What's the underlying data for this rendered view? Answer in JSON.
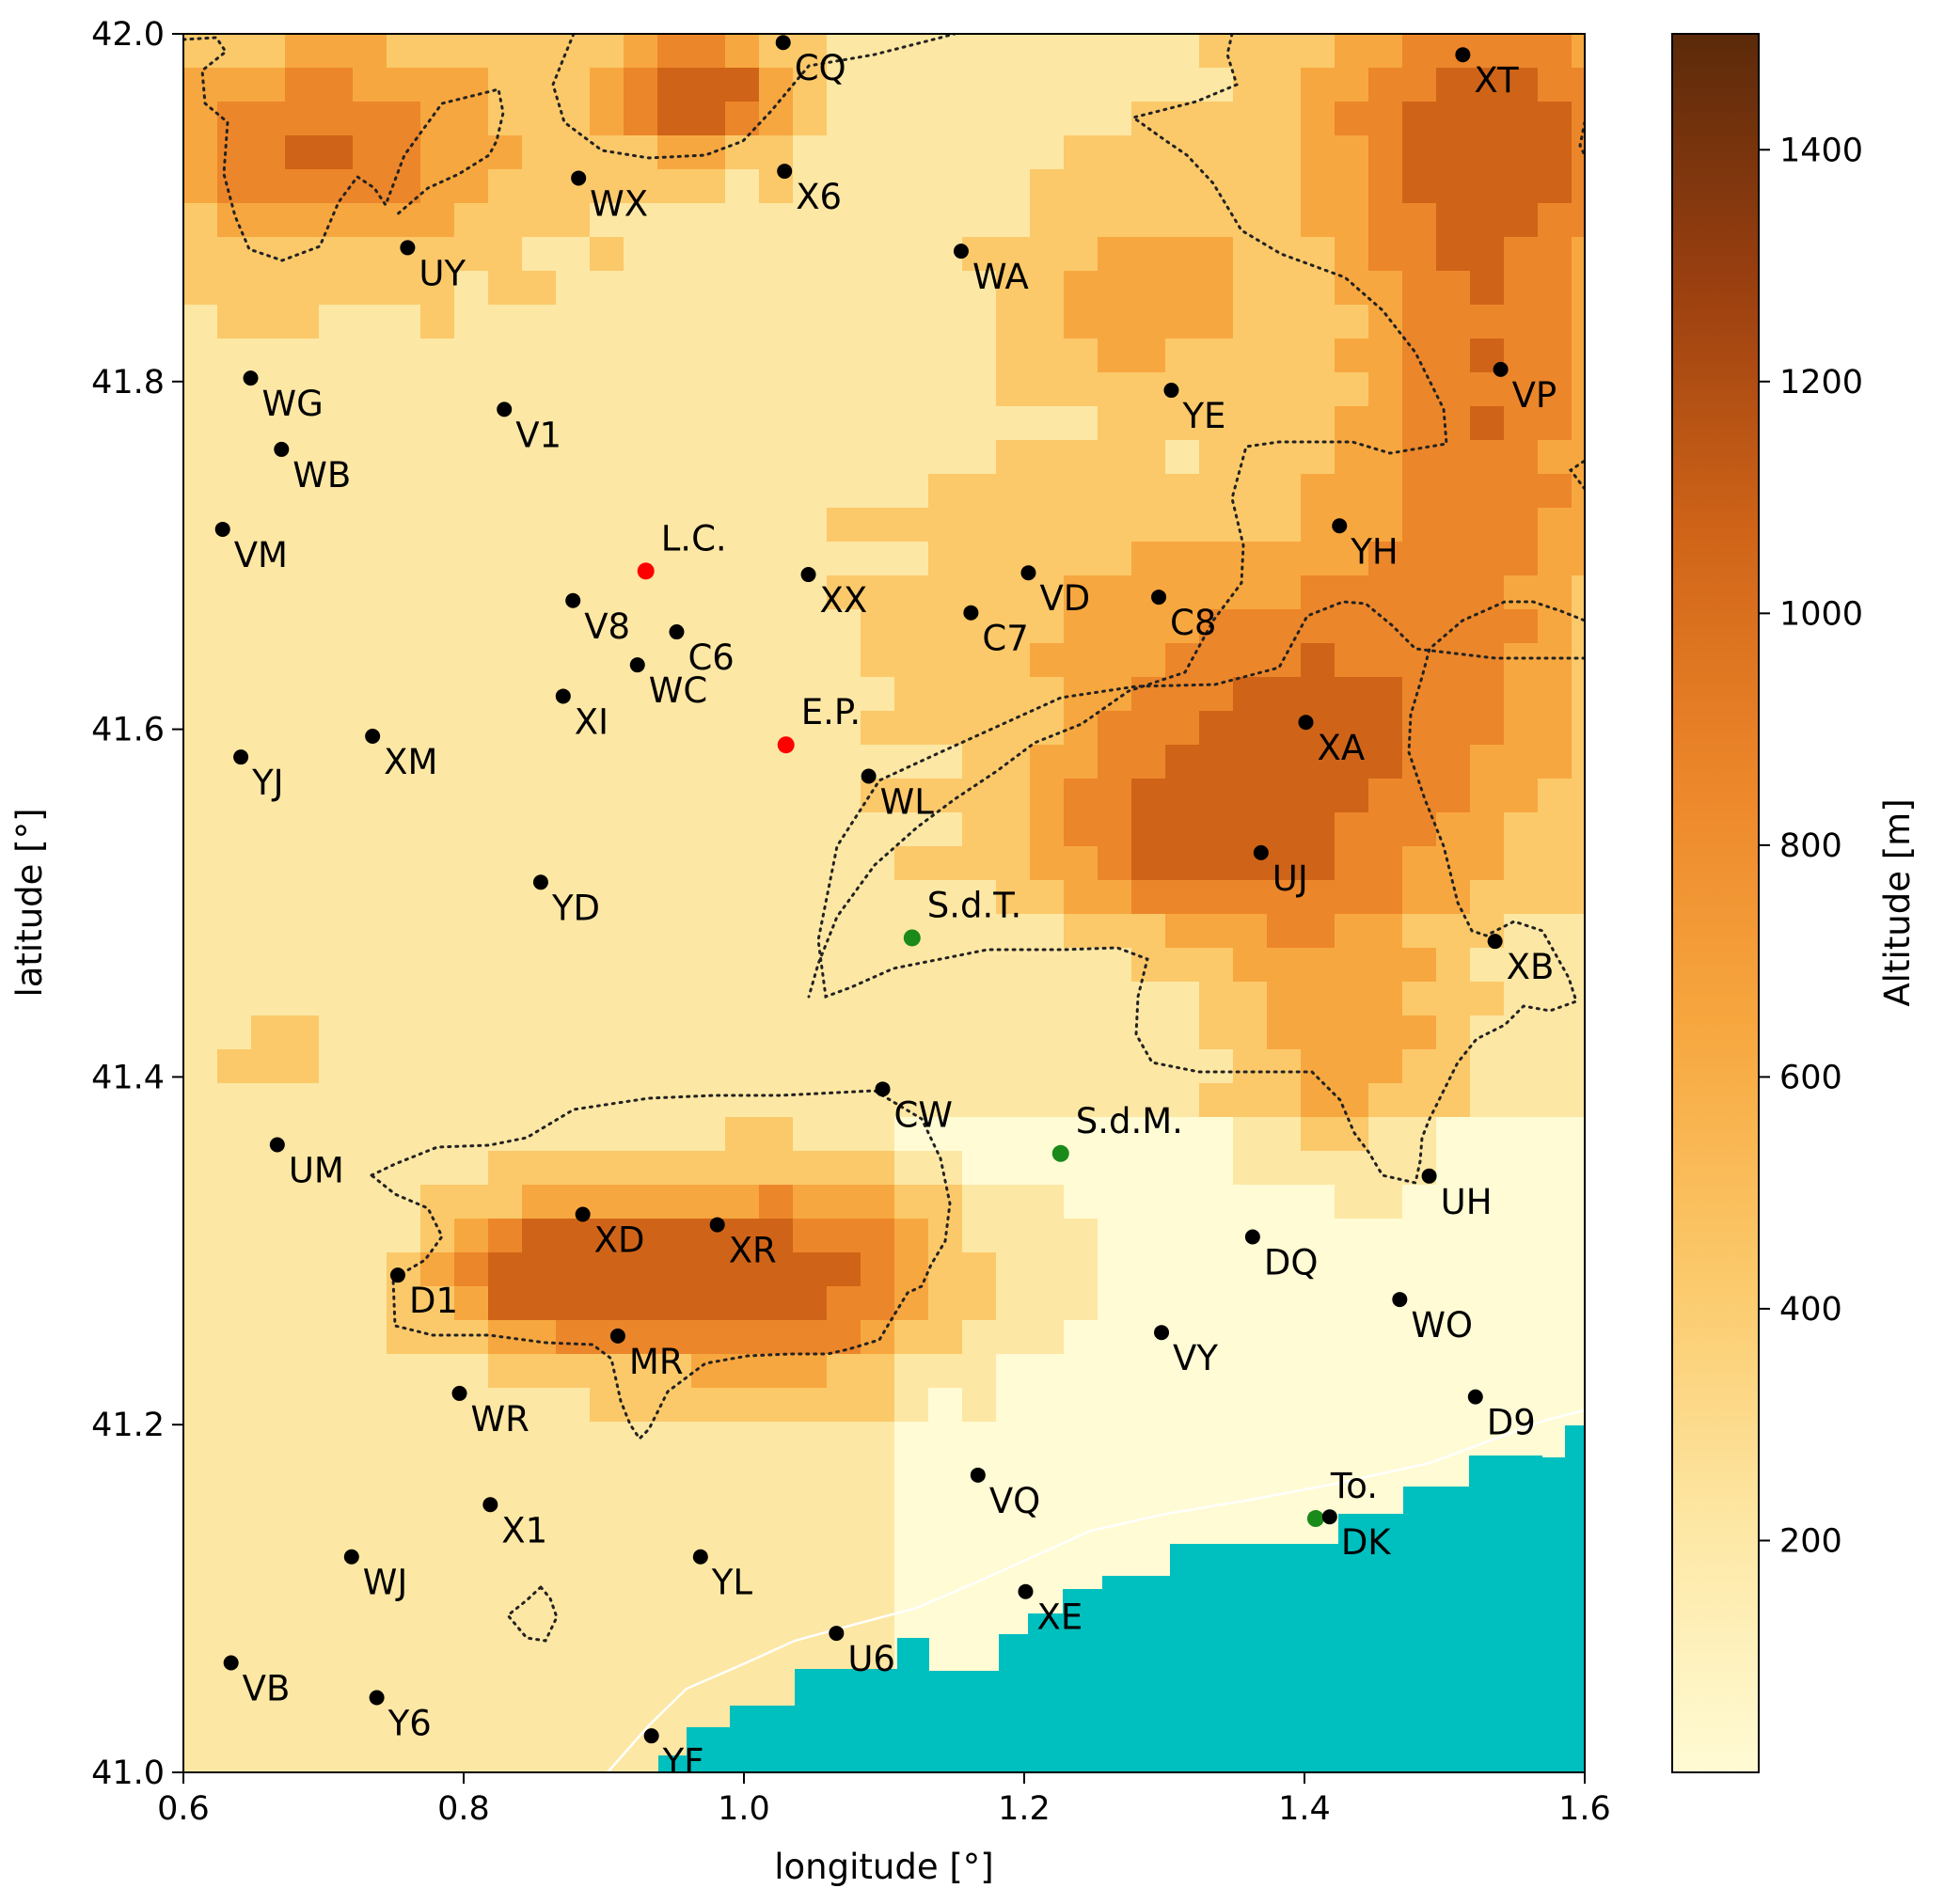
{
  "map": {
    "xlabel": "longitude [°]",
    "ylabel": "latitude [°]",
    "xlim": [
      0.6,
      1.6
    ],
    "ylim": [
      41.0,
      42.0
    ],
    "xticks": [
      {
        "v": 0.6,
        "t": "0.6"
      },
      {
        "v": 0.8,
        "t": "0.8"
      },
      {
        "v": 1.0,
        "t": "1.0"
      },
      {
        "v": 1.2,
        "t": "1.2"
      },
      {
        "v": 1.4,
        "t": "1.4"
      },
      {
        "v": 1.6,
        "t": "1.6"
      }
    ],
    "yticks": [
      {
        "v": 41.0,
        "t": "41.0"
      },
      {
        "v": 41.2,
        "t": "41.2"
      },
      {
        "v": 41.4,
        "t": "41.4"
      },
      {
        "v": 41.6,
        "t": "41.6"
      },
      {
        "v": 41.8,
        "t": "41.8"
      },
      {
        "v": 42.0,
        "t": "42.0"
      }
    ],
    "colors": {
      "black_station": "#000000",
      "red_station": "#ff0000",
      "green_station": "#1a8a1a",
      "sea": "#00bfbf",
      "contour": "#222222"
    }
  },
  "colorbar": {
    "label": "Altitude [m]",
    "range": [
      0,
      1500
    ],
    "colors": [
      "#fffbd4",
      "#fde7a4",
      "#fbc96a",
      "#f7a73f",
      "#ec862a",
      "#cf6418",
      "#9a3f10",
      "#5b2a0a"
    ],
    "ticks": [
      {
        "v": 200,
        "t": "200"
      },
      {
        "v": 400,
        "t": "400"
      },
      {
        "v": 600,
        "t": "600"
      },
      {
        "v": 800,
        "t": "800"
      },
      {
        "v": 1000,
        "t": "1000"
      },
      {
        "v": 1200,
        "t": "1200"
      },
      {
        "v": 1400,
        "t": "1400"
      }
    ]
  },
  "stations": [
    {
      "name": "CQ",
      "lon": 1.028,
      "lat": 41.995,
      "color": "black"
    },
    {
      "name": "XT",
      "lon": 1.513,
      "lat": 41.988,
      "color": "black"
    },
    {
      "name": "WX",
      "lon": 0.882,
      "lat": 41.917,
      "color": "black"
    },
    {
      "name": "X6",
      "lon": 1.029,
      "lat": 41.921,
      "color": "black"
    },
    {
      "name": "UY",
      "lon": 0.76,
      "lat": 41.877,
      "color": "black"
    },
    {
      "name": "WA",
      "lon": 1.155,
      "lat": 41.875,
      "color": "black"
    },
    {
      "name": "WG",
      "lon": 0.648,
      "lat": 41.802,
      "color": "black"
    },
    {
      "name": "VP",
      "lon": 1.54,
      "lat": 41.807,
      "color": "black"
    },
    {
      "name": "V1",
      "lon": 0.829,
      "lat": 41.784,
      "color": "black"
    },
    {
      "name": "YE",
      "lon": 1.305,
      "lat": 41.795,
      "color": "black"
    },
    {
      "name": "WB",
      "lon": 0.67,
      "lat": 41.761,
      "color": "black"
    },
    {
      "name": "VM",
      "lon": 0.628,
      "lat": 41.715,
      "color": "black"
    },
    {
      "name": "YH",
      "lon": 1.425,
      "lat": 41.717,
      "color": "black"
    },
    {
      "name": "L.C.",
      "lon": 0.93,
      "lat": 41.691,
      "color": "red"
    },
    {
      "name": "XX",
      "lon": 1.046,
      "lat": 41.689,
      "color": "black"
    },
    {
      "name": "VD",
      "lon": 1.203,
      "lat": 41.69,
      "color": "black"
    },
    {
      "name": "C8",
      "lon": 1.296,
      "lat": 41.676,
      "color": "black"
    },
    {
      "name": "V8",
      "lon": 0.878,
      "lat": 41.674,
      "color": "black"
    },
    {
      "name": "C7",
      "lon": 1.162,
      "lat": 41.667,
      "color": "black"
    },
    {
      "name": "C6",
      "lon": 0.952,
      "lat": 41.656,
      "color": "black"
    },
    {
      "name": "WC",
      "lon": 0.924,
      "lat": 41.637,
      "color": "black"
    },
    {
      "name": "XI",
      "lon": 0.871,
      "lat": 41.619,
      "color": "black"
    },
    {
      "name": "XA",
      "lon": 1.401,
      "lat": 41.604,
      "color": "black"
    },
    {
      "name": "XM",
      "lon": 0.735,
      "lat": 41.596,
      "color": "black"
    },
    {
      "name": "E.P.",
      "lon": 1.03,
      "lat": 41.591,
      "color": "red"
    },
    {
      "name": "YJ",
      "lon": 0.641,
      "lat": 41.584,
      "color": "black"
    },
    {
      "name": "WL",
      "lon": 1.089,
      "lat": 41.573,
      "color": "black"
    },
    {
      "name": "UJ",
      "lon": 1.369,
      "lat": 41.529,
      "color": "black"
    },
    {
      "name": "YD",
      "lon": 0.855,
      "lat": 41.512,
      "color": "black"
    },
    {
      "name": "S.d.T.",
      "lon": 1.12,
      "lat": 41.48,
      "color": "green"
    },
    {
      "name": "XB",
      "lon": 1.536,
      "lat": 41.478,
      "color": "black"
    },
    {
      "name": "CW",
      "lon": 1.099,
      "lat": 41.393,
      "color": "black"
    },
    {
      "name": "UM",
      "lon": 0.667,
      "lat": 41.361,
      "color": "black"
    },
    {
      "name": "S.d.M.",
      "lon": 1.226,
      "lat": 41.356,
      "color": "green"
    },
    {
      "name": "UH",
      "lon": 1.489,
      "lat": 41.343,
      "color": "black"
    },
    {
      "name": "XD",
      "lon": 0.885,
      "lat": 41.321,
      "color": "black"
    },
    {
      "name": "XR",
      "lon": 0.981,
      "lat": 41.315,
      "color": "black"
    },
    {
      "name": "DQ",
      "lon": 1.363,
      "lat": 41.308,
      "color": "black"
    },
    {
      "name": "D1",
      "lon": 0.753,
      "lat": 41.286,
      "color": "black"
    },
    {
      "name": "WO",
      "lon": 1.468,
      "lat": 41.272,
      "color": "black"
    },
    {
      "name": "VY",
      "lon": 1.298,
      "lat": 41.253,
      "color": "black"
    },
    {
      "name": "MR",
      "lon": 0.91,
      "lat": 41.251,
      "color": "black"
    },
    {
      "name": "WR",
      "lon": 0.797,
      "lat": 41.218,
      "color": "black"
    },
    {
      "name": "D9",
      "lon": 1.522,
      "lat": 41.216,
      "color": "black"
    },
    {
      "name": "VQ",
      "lon": 1.167,
      "lat": 41.171,
      "color": "black"
    },
    {
      "name": "X1",
      "lon": 0.819,
      "lat": 41.154,
      "color": "black"
    },
    {
      "name": "To.",
      "lon": 1.408,
      "lat": 41.146,
      "color": "green"
    },
    {
      "name": "DK",
      "lon": 1.418,
      "lat": 41.147,
      "color": "black"
    },
    {
      "name": "WJ",
      "lon": 0.72,
      "lat": 41.124,
      "color": "black"
    },
    {
      "name": "YL",
      "lon": 0.969,
      "lat": 41.124,
      "color": "black"
    },
    {
      "name": "XE",
      "lon": 1.201,
      "lat": 41.104,
      "color": "black"
    },
    {
      "name": "U6",
      "lon": 1.066,
      "lat": 41.08,
      "color": "black"
    },
    {
      "name": "VB",
      "lon": 0.634,
      "lat": 41.063,
      "color": "black"
    },
    {
      "name": "Y6",
      "lon": 0.738,
      "lat": 41.043,
      "color": "black"
    },
    {
      "name": "YF",
      "lon": 0.934,
      "lat": 41.021,
      "color": "black"
    }
  ]
}
